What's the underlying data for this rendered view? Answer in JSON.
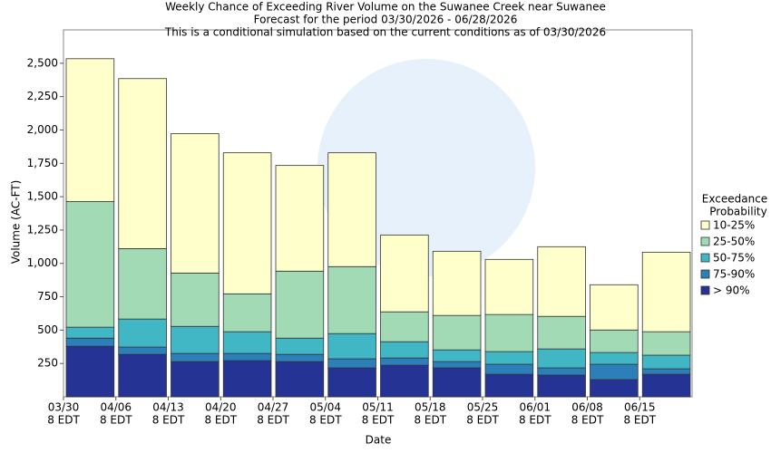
{
  "chart_data": {
    "type": "stacked-bar",
    "title": "Weekly Chance of Exceeding River Volume on the Suwanee Creek near Suwanee",
    "subtitle": [
      "Forecast for the period 03/30/2026 - 06/28/2026",
      "This is a conditional simulation based on the current conditions as of 03/30/2026"
    ],
    "x_label": "Date",
    "y_label": "Volume (AC-FT)",
    "categories": [
      "03/30",
      "04/06",
      "04/13",
      "04/20",
      "04/27",
      "05/04",
      "05/11",
      "05/18",
      "05/25",
      "06/01",
      "06/08",
      "06/15"
    ],
    "category_sublabel": "8 EDT",
    "legend_title": [
      "Exceedance",
      "Probability"
    ],
    "legend_position": "right",
    "series": [
      {
        "name": "10-25%",
        "color": "#ffffcc",
        "values": [
          1071,
          1274,
          1044,
          1057,
          792,
          853,
          576,
          481,
          413,
          522,
          339,
          596
        ]
      },
      {
        "name": "25-50%",
        "color": "#a1dab4",
        "values": [
          941,
          528,
          400,
          284,
          502,
          502,
          224,
          258,
          278,
          244,
          169,
          176
        ]
      },
      {
        "name": "50-75%",
        "color": "#41b6c4",
        "values": [
          82,
          210,
          203,
          163,
          122,
          189,
          122,
          88,
          95,
          142,
          88,
          102
        ]
      },
      {
        "name": "75-90%",
        "color": "#2c7fb8",
        "values": [
          61,
          55,
          61,
          54,
          54,
          68,
          54,
          47,
          75,
          54,
          115,
          41
        ]
      },
      {
        "name": "> 90%",
        "color": "#253494",
        "values": [
          379,
          318,
          264,
          271,
          264,
          217,
          237,
          217,
          169,
          163,
          129,
          169
        ]
      }
    ],
    "ylim": [
      0,
      2750
    ],
    "yticks": [
      {
        "value": 250,
        "label": "250"
      },
      {
        "value": 500,
        "label": "500"
      },
      {
        "value": 750,
        "label": "750"
      },
      {
        "value": 1000,
        "label": "1,000"
      },
      {
        "value": 1250,
        "label": "1,250"
      },
      {
        "value": 1500,
        "label": "1,500"
      },
      {
        "value": 1750,
        "label": "1,750"
      },
      {
        "value": 2000,
        "label": "2,000"
      },
      {
        "value": 2250,
        "label": "2,250"
      },
      {
        "value": 2500,
        "label": "2,500"
      }
    ]
  }
}
